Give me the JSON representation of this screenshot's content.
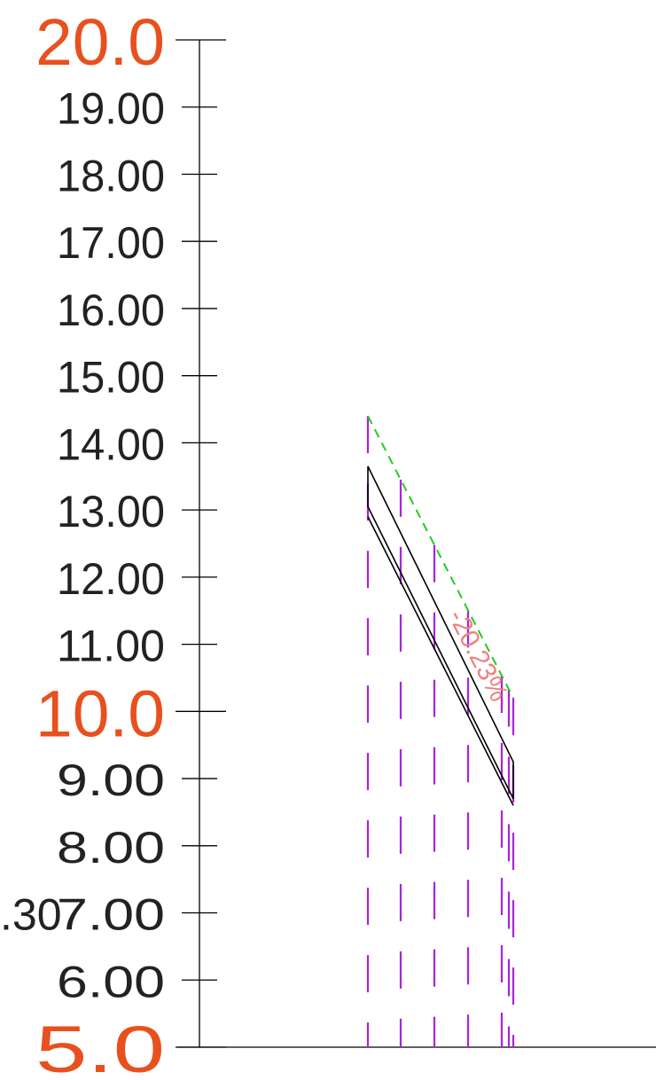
{
  "axis": {
    "minor_labels": [
      {
        "value": 19,
        "text": "19.00"
      },
      {
        "value": 18,
        "text": "18.00"
      },
      {
        "value": 17,
        "text": "17.00"
      },
      {
        "value": 16,
        "text": "16.00"
      },
      {
        "value": 15,
        "text": "15.00"
      },
      {
        "value": 14,
        "text": "14.00"
      },
      {
        "value": 13,
        "text": "13.00"
      },
      {
        "value": 12,
        "text": "12.00"
      },
      {
        "value": 11,
        "text": "11.00"
      },
      {
        "value": 9,
        "text": "9.00"
      },
      {
        "value": 8,
        "text": "8.00"
      },
      {
        "value": 7,
        "text": "7.00"
      },
      {
        "value": 6,
        "text": "6.00"
      }
    ],
    "major_labels": [
      {
        "value": 20,
        "text": "20.0"
      },
      {
        "value": 10,
        "text": "10.0"
      },
      {
        "value": 5,
        "text": "5.0"
      }
    ],
    "left_partial_label": ".30",
    "range": [
      5,
      20
    ]
  },
  "profile": {
    "slope_label": "-20.23%",
    "ground_line": {
      "start": 14.4,
      "end": 10.2
    },
    "upper_line": {
      "start": 13.65,
      "end": 9.25
    },
    "lower_line": {
      "start": 13.05,
      "end": 8.7
    },
    "mid_line": {
      "start": 12.9,
      "end": 8.6
    }
  },
  "colors": {
    "axis": "#000000",
    "major_label": "#e8501e",
    "minor_label": "#222222",
    "ground_line": "#22cc22",
    "section_lines": "#aa22dd",
    "profile_lines": "#000000",
    "slope_label": "#f08080"
  }
}
